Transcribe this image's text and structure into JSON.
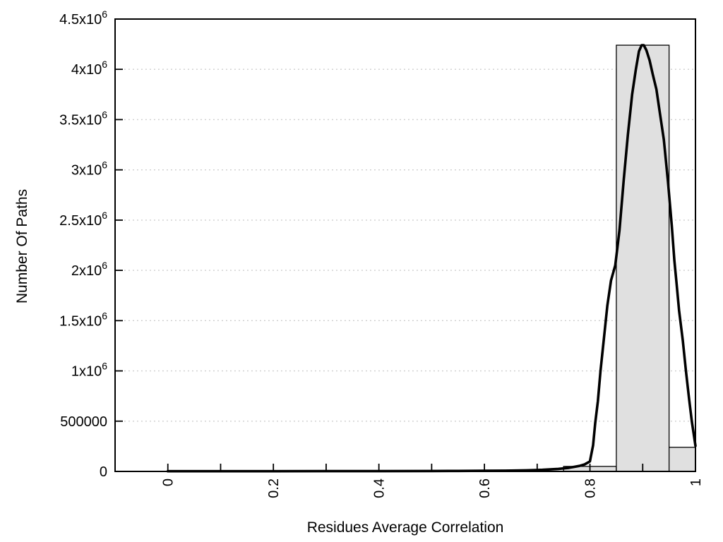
{
  "chart_data": {
    "type": "histogram+line",
    "title": "",
    "xlabel": "Residues Average Correlation",
    "ylabel": "Number Of Paths",
    "xlim": [
      -0.1,
      1.0
    ],
    "ylim": [
      0,
      4500000
    ],
    "grid": "horizontal-dotted",
    "legend": "none",
    "x_minor_ticks": [
      0,
      0.1,
      0.2,
      0.3,
      0.4,
      0.5,
      0.6,
      0.7,
      0.8,
      0.9,
      1.0
    ],
    "x_tick_labels": [
      {
        "v": 0,
        "label": "0"
      },
      {
        "v": 0.2,
        "label": "0.2"
      },
      {
        "v": 0.4,
        "label": "0.4"
      },
      {
        "v": 0.6,
        "label": "0.6"
      },
      {
        "v": 0.8,
        "label": "0.8"
      },
      {
        "v": 1.0,
        "label": "1"
      }
    ],
    "y_ticks": [
      {
        "v": 0,
        "label": "0"
      },
      {
        "v": 500000,
        "label": "500000"
      },
      {
        "v": 1000000,
        "label": "1x10^6"
      },
      {
        "v": 1500000,
        "label": "1.5x10^6"
      },
      {
        "v": 2000000,
        "label": "2x10^6"
      },
      {
        "v": 2500000,
        "label": "2.5x10^6"
      },
      {
        "v": 3000000,
        "label": "3x10^6"
      },
      {
        "v": 3500000,
        "label": "3.5x10^6"
      },
      {
        "v": 4000000,
        "label": "4x10^6"
      },
      {
        "v": 4500000,
        "label": "4.5x10^6"
      }
    ],
    "bars": [
      {
        "x0": 0.75,
        "x1": 0.85,
        "value": 50000
      },
      {
        "x0": 0.85,
        "x1": 0.95,
        "value": 4240000
      },
      {
        "x0": 0.95,
        "x1": 1.0,
        "value": 240000
      }
    ],
    "curve_peak": {
      "x": 0.9,
      "value": 4240000
    },
    "curve_points": [
      [
        0.0,
        2000
      ],
      [
        0.1,
        2000
      ],
      [
        0.2,
        2200
      ],
      [
        0.3,
        2500
      ],
      [
        0.4,
        3000
      ],
      [
        0.5,
        4000
      ],
      [
        0.55,
        5000
      ],
      [
        0.6,
        6500
      ],
      [
        0.64,
        8000
      ],
      [
        0.68,
        11000
      ],
      [
        0.71,
        16000
      ],
      [
        0.74,
        25000
      ],
      [
        0.76,
        36000
      ],
      [
        0.78,
        55000
      ],
      [
        0.79,
        70000
      ],
      [
        0.8,
        100000
      ],
      [
        0.806,
        260000
      ],
      [
        0.81,
        480000
      ],
      [
        0.815,
        700000
      ],
      [
        0.82,
        1000000
      ],
      [
        0.826,
        1300000
      ],
      [
        0.833,
        1650000
      ],
      [
        0.84,
        1900000
      ],
      [
        0.848,
        2050000
      ],
      [
        0.856,
        2400000
      ],
      [
        0.864,
        2900000
      ],
      [
        0.872,
        3350000
      ],
      [
        0.88,
        3750000
      ],
      [
        0.887,
        4000000
      ],
      [
        0.893,
        4180000
      ],
      [
        0.898,
        4240000
      ],
      [
        0.902,
        4240000
      ],
      [
        0.907,
        4190000
      ],
      [
        0.913,
        4090000
      ],
      [
        0.919,
        3950000
      ],
      [
        0.926,
        3800000
      ],
      [
        0.933,
        3550000
      ],
      [
        0.94,
        3300000
      ],
      [
        0.948,
        2880000
      ],
      [
        0.955,
        2450000
      ],
      [
        0.96,
        2100000
      ],
      [
        0.964,
        1880000
      ],
      [
        0.969,
        1600000
      ],
      [
        0.976,
        1300000
      ],
      [
        0.982,
        1000000
      ],
      [
        0.988,
        720000
      ],
      [
        0.993,
        500000
      ],
      [
        1.0,
        255000
      ]
    ],
    "colors": {
      "bar_fill": "#e0e0e0",
      "bar_stroke": "#000000",
      "curve": "#000000",
      "grid": "#c9c9c9",
      "border": "#000000",
      "text": "#000000",
      "background": "#ffffff"
    }
  }
}
